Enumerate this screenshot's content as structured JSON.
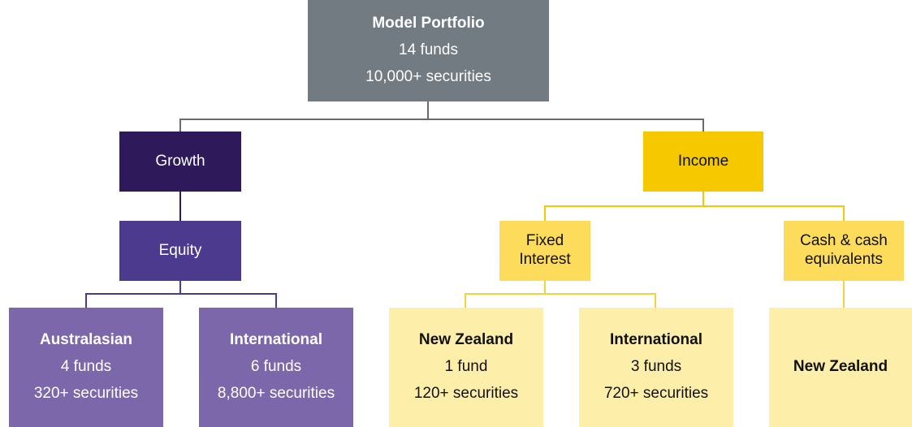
{
  "nodes": [
    {
      "title": "Model Portfolio",
      "lines": [
        "14 funds",
        "10,000+ securities"
      ]
    },
    {
      "title": "Growth"
    },
    {
      "title": "Income"
    },
    {
      "title": "Equity"
    },
    {
      "title": "Fixed Interest"
    },
    {
      "title": "Cash & cash equivalents"
    },
    {
      "title": "Australasian",
      "lines": [
        "4 funds",
        "320+ securities"
      ]
    },
    {
      "title": "International",
      "lines": [
        "6 funds",
        "8,800+ securities"
      ]
    },
    {
      "title": "New Zealand",
      "lines": [
        "1 fund",
        "120+ securities"
      ]
    },
    {
      "title": "International",
      "lines": [
        "3 funds",
        "720+ securities"
      ]
    },
    {
      "title": "New Zealand"
    }
  ]
}
